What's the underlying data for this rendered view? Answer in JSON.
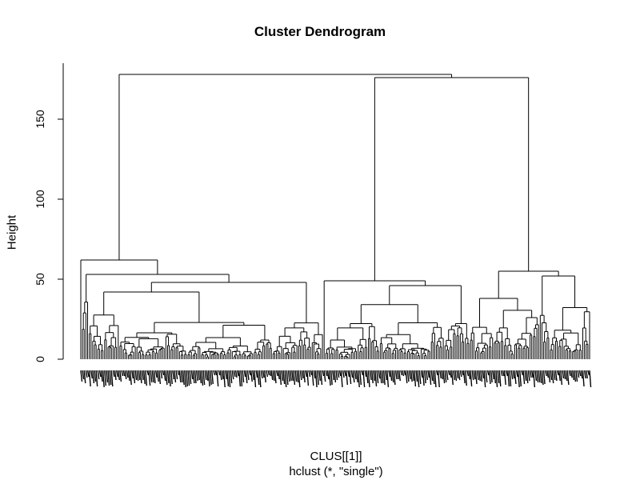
{
  "chart_data": {
    "type": "dendrogram",
    "title": "Cluster Dendrogram",
    "xlabel": "CLUS[[1]]",
    "sublabel": "hclust (*, \"single\")",
    "ylabel": "Height",
    "ylim": [
      0,
      180
    ],
    "yticks": [
      0,
      50,
      100,
      150
    ],
    "leaf_count": 300,
    "merges": [
      {
        "cluster": "root",
        "height": 178,
        "children": [
          "A",
          "B"
        ]
      },
      {
        "cluster": "B",
        "height": 176,
        "children": [
          "B1",
          "B2"
        ]
      },
      {
        "cluster": "A",
        "height": 62,
        "children": [
          "A-outlier",
          "A1"
        ]
      },
      {
        "cluster": "B2",
        "height": 55,
        "children": [
          "B2a",
          "B2b"
        ]
      },
      {
        "cluster": "A1",
        "height": 53,
        "children": [
          "A1a",
          "A1b"
        ]
      },
      {
        "cluster": "B2b",
        "height": 52,
        "children": [
          "B2b-i",
          "B2b-ii"
        ]
      },
      {
        "cluster": "B1",
        "height": 49,
        "children": [
          "B1-outlier",
          "B1a"
        ]
      },
      {
        "cluster": "A1b",
        "height": 48,
        "children": [
          "A1b-i",
          "A1b-ii"
        ]
      },
      {
        "cluster": "B1a",
        "height": 46,
        "children": [
          "B1a-i",
          "B1a-ii"
        ]
      },
      {
        "cluster": "A1b-i",
        "height": 42,
        "children": [
          "A1b-i-1",
          "A1b-i-2"
        ]
      },
      {
        "cluster": "B2a",
        "height": 38,
        "children": [
          "B2a-i",
          "B2a-ii"
        ]
      }
    ]
  }
}
